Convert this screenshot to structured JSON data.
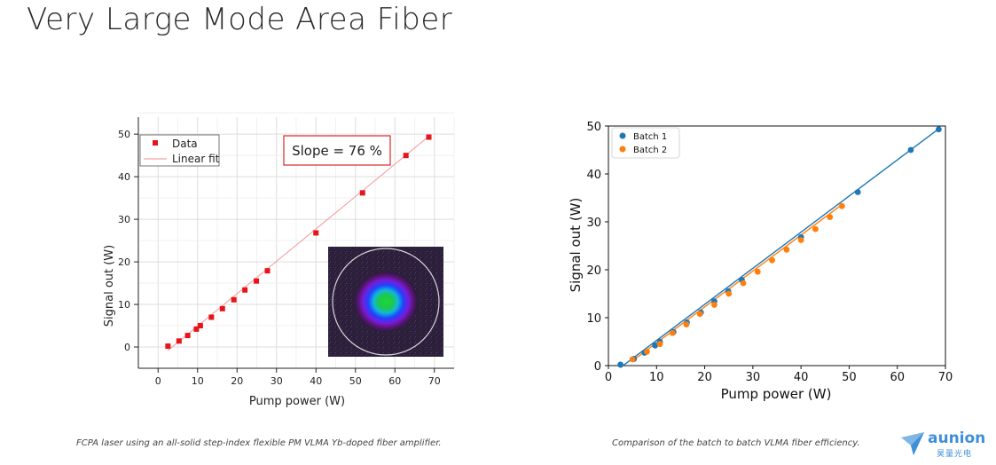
{
  "slide": {
    "title": "Very Large Mode Area Fiber",
    "caption_left": "FCPA laser using an all-solid step-index flexible PM VLMA Yb-doped fiber amplifier.",
    "caption_right": "Comparison of the batch to batch VLMA fiber efficiency.",
    "logo": {
      "name": "aunion",
      "subtitle": "昊量光电",
      "color": "#3f8fd8"
    }
  },
  "chart_data": [
    {
      "type": "scatter",
      "xlabel": "Pump power (W)",
      "ylabel": "Signal out (W)",
      "xlim": [
        -5,
        75
      ],
      "ylim": [
        -5,
        54
      ],
      "xticks": [
        0,
        10,
        20,
        30,
        40,
        50,
        60,
        70
      ],
      "yticks": [
        0,
        10,
        20,
        30,
        40,
        50
      ],
      "grid": true,
      "legend": "top-left",
      "annotation": "Slope = 76 %",
      "inset": "beam profile image",
      "series": [
        {
          "name": "Data",
          "color": "#e8141c",
          "marker": "square",
          "x": [
            2.5,
            5.3,
            7.5,
            9.7,
            10.7,
            13.5,
            16.3,
            19.2,
            22.0,
            24.9,
            27.7,
            40.0,
            51.8,
            62.8,
            68.6
          ],
          "y": [
            0.2,
            1.4,
            2.7,
            4.2,
            5.0,
            7.0,
            9.0,
            11.1,
            13.4,
            15.5,
            17.9,
            26.8,
            36.2,
            45.0,
            49.3
          ]
        },
        {
          "name": "Linear fit",
          "color": "#f4a0a0",
          "type": "line",
          "x": [
            2.5,
            68.6
          ],
          "y": [
            -0.8,
            49.5
          ]
        }
      ]
    },
    {
      "type": "scatter",
      "xlabel": "Pump power (W)",
      "ylabel": "Signal out (W)",
      "xlim": [
        0,
        70
      ],
      "ylim": [
        0,
        50
      ],
      "xticks": [
        0,
        10,
        20,
        30,
        40,
        50,
        60,
        70
      ],
      "yticks": [
        0,
        10,
        20,
        30,
        40,
        50
      ],
      "grid": false,
      "legend": "top-left",
      "series": [
        {
          "name": "Batch 1",
          "color": "#1f77b4",
          "x": [
            2.5,
            5.3,
            7.5,
            9.7,
            10.7,
            13.5,
            16.3,
            19.2,
            22.0,
            24.9,
            27.7,
            40.0,
            51.8,
            62.8,
            68.6
          ],
          "y": [
            0.2,
            1.4,
            2.7,
            4.2,
            5.0,
            7.0,
            9.0,
            11.1,
            13.4,
            15.5,
            17.9,
            26.8,
            36.2,
            45.0,
            49.3
          ],
          "fit": {
            "x": [
              2.5,
              68.6
            ],
            "y": [
              -0.4,
              49.4
            ]
          }
        },
        {
          "name": "Batch 2",
          "color": "#ff7f0e",
          "x": [
            5.0,
            8.0,
            10.7,
            13.3,
            16.2,
            19.0,
            22.0,
            25.0,
            28.0,
            31.0,
            34.0,
            37.0,
            40.0,
            43.0,
            46.0,
            48.5
          ],
          "y": [
            1.3,
            2.9,
            4.5,
            6.8,
            8.6,
            10.8,
            12.7,
            15.0,
            17.2,
            19.6,
            22.0,
            24.2,
            26.2,
            28.5,
            31.0,
            33.3
          ],
          "fit": {
            "x": [
              5.0,
              48.5
            ],
            "y": [
              1.0,
              33.6
            ]
          }
        }
      ]
    }
  ]
}
